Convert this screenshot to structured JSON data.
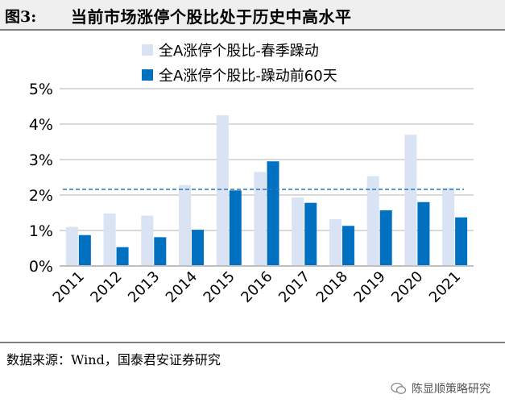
{
  "figure": {
    "number": "图3:",
    "title": "当前市场涨停个股比处于历史中高水平"
  },
  "source": "数据来源：Wind，国泰君安证券研究",
  "watermark": "陈显顺策略研究",
  "colors": {
    "spring": "#dae3f3",
    "before": "#0070c0",
    "reference_line": "#2e75b6",
    "grid": "#d9d9d9"
  },
  "chart_data": {
    "type": "bar",
    "categories": [
      "2011",
      "2012",
      "2013",
      "2014",
      "2015",
      "2016",
      "2017",
      "2018",
      "2019",
      "2020",
      "2021"
    ],
    "series": [
      {
        "name": "全A涨停个股比-春季躁动",
        "values": [
          1.1,
          1.48,
          1.42,
          2.28,
          4.25,
          2.65,
          1.93,
          1.32,
          2.53,
          3.7,
          2.2
        ]
      },
      {
        "name": "全A涨停个股比-躁动前60天",
        "values": [
          0.87,
          0.53,
          0.81,
          1.02,
          2.13,
          2.95,
          1.78,
          1.13,
          1.57,
          1.8,
          1.37
        ]
      }
    ],
    "reference_line": 2.16,
    "ylim": [
      0,
      5
    ],
    "yticks": [
      0,
      1,
      2,
      3,
      4,
      5
    ],
    "ytick_labels": [
      "0%",
      "1%",
      "2%",
      "3%",
      "4%",
      "5%"
    ],
    "grid": true,
    "legend_position": "top-center"
  }
}
